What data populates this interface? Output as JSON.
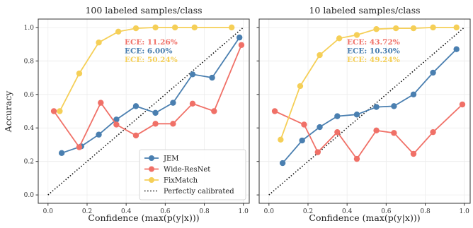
{
  "figure": {
    "shared_ylabel": "Accuracy",
    "shared_xlabel": "Confidence (max(p(y|x)))",
    "calibration_legend_label": "Perfectly calibrated"
  },
  "colors": {
    "JEM": "#4a7fb0",
    "Wide-ResNet": "#f07067",
    "FixMatch": "#f5cf57",
    "calibration": "#111111",
    "axis": "#333333",
    "grid": "#ececec"
  },
  "chart_data": [
    {
      "type": "line",
      "title": "100 labeled samples/class",
      "xlabel": "Confidence (max(p(y|x)))",
      "ylabel": "Accuracy",
      "xlim": [
        -0.05,
        1.03
      ],
      "ylim": [
        -0.05,
        1.05
      ],
      "xticks": [
        "0.0",
        "0.2",
        "0.4",
        "0.6",
        "0.8",
        "1.0"
      ],
      "yticks": [
        "0.0",
        "0.2",
        "0.4",
        "0.6",
        "0.8",
        "1.0"
      ],
      "grid": true,
      "legend_position": "lower-right",
      "ece_labels": [
        {
          "series": "Wide-ResNet",
          "text": "ECE: 11.26%"
        },
        {
          "series": "JEM",
          "text": "ECE: 6.00%"
        },
        {
          "series": "FixMatch",
          "text": "ECE: 50.24%"
        }
      ],
      "series": [
        {
          "name": "JEM",
          "x": [
            0.07,
            0.17,
            0.26,
            0.35,
            0.45,
            0.55,
            0.64,
            0.74,
            0.84,
            0.98
          ],
          "y": [
            0.25,
            0.29,
            0.36,
            0.45,
            0.53,
            0.49,
            0.55,
            0.72,
            0.7,
            0.94
          ]
        },
        {
          "name": "Wide-ResNet",
          "x": [
            0.03,
            0.16,
            0.27,
            0.35,
            0.45,
            0.55,
            0.64,
            0.74,
            0.85,
            0.99
          ],
          "y": [
            0.5,
            0.285,
            0.55,
            0.42,
            0.355,
            0.425,
            0.425,
            0.545,
            0.5,
            0.895
          ]
        },
        {
          "name": "FixMatch",
          "x": [
            0.06,
            0.16,
            0.26,
            0.36,
            0.45,
            0.55,
            0.65,
            0.75,
            0.94
          ],
          "y": [
            0.5,
            0.725,
            0.91,
            0.975,
            0.995,
            1.0,
            1.0,
            1.0,
            1.0
          ]
        }
      ]
    },
    {
      "type": "line",
      "title": "10 labeled samples/class",
      "xlabel": "Confidence (max(p(y|x)))",
      "ylabel": "",
      "xlim": [
        -0.05,
        1.03
      ],
      "ylim": [
        -0.05,
        1.05
      ],
      "xticks": [
        "0.0",
        "0.2",
        "0.4",
        "0.6",
        "0.8",
        "1.0"
      ],
      "yticks": [],
      "grid": true,
      "ece_labels": [
        {
          "series": "Wide-ResNet",
          "text": "ECE: 43.72%"
        },
        {
          "series": "JEM",
          "text": "ECE: 10.30%"
        },
        {
          "series": "FixMatch",
          "text": "ECE: 49.24%"
        }
      ],
      "series": [
        {
          "name": "JEM",
          "x": [
            0.07,
            0.17,
            0.26,
            0.35,
            0.45,
            0.55,
            0.64,
            0.74,
            0.84,
            0.96
          ],
          "y": [
            0.19,
            0.325,
            0.405,
            0.47,
            0.48,
            0.525,
            0.53,
            0.6,
            0.73,
            0.87
          ]
        },
        {
          "name": "Wide-ResNet",
          "x": [
            0.03,
            0.18,
            0.25,
            0.35,
            0.45,
            0.55,
            0.64,
            0.74,
            0.84,
            0.99
          ],
          "y": [
            0.5,
            0.42,
            0.255,
            0.375,
            0.215,
            0.385,
            0.37,
            0.245,
            0.375,
            0.54
          ]
        },
        {
          "name": "FixMatch",
          "x": [
            0.06,
            0.16,
            0.26,
            0.36,
            0.45,
            0.55,
            0.65,
            0.74,
            0.84,
            0.96
          ],
          "y": [
            0.33,
            0.65,
            0.835,
            0.935,
            0.955,
            0.99,
            0.995,
            0.995,
            1.0,
            1.0
          ]
        }
      ]
    }
  ]
}
